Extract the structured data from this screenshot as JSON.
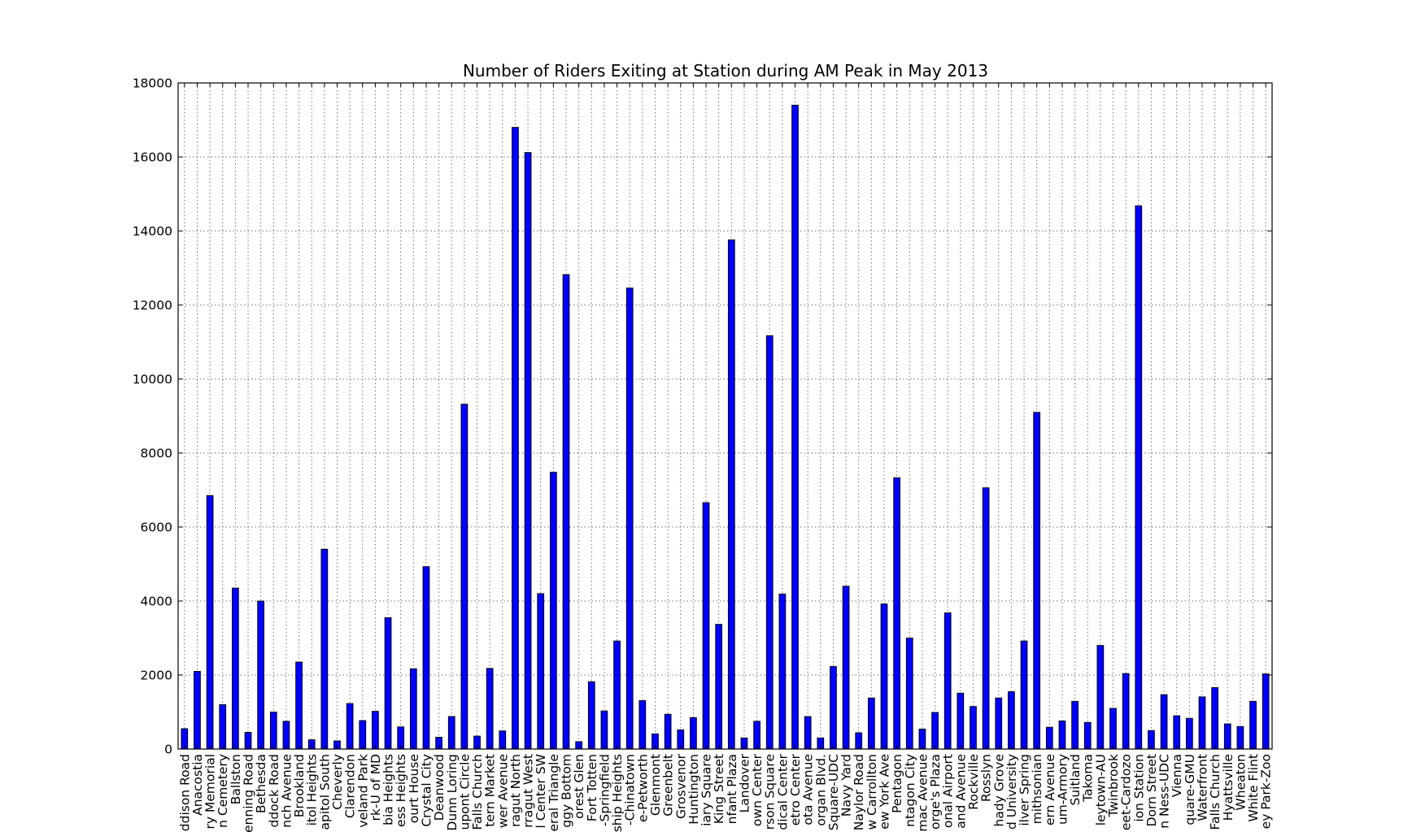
{
  "chart_data": {
    "type": "bar",
    "title": "Number of Riders Exiting at Station during AM Peak in May 2013",
    "xlabel": "",
    "ylabel": "",
    "ylim": [
      0,
      18000
    ],
    "yticks": [
      "0",
      "2000",
      "4000",
      "6000",
      "8000",
      "10000",
      "12000",
      "14000",
      "16000",
      "18000"
    ],
    "grid": true,
    "legend": "none",
    "bar_color": "#0000ff",
    "categories": [
      "ddison Road",
      "Anacostia",
      "ry Memorial",
      "n Cemetery",
      "Ballston",
      "enning Road",
      "Bethesda",
      "ddock Road",
      "nch Avenue",
      "Brookland",
      "itol Heights",
      "apitol South",
      "Cheverly",
      "Clarendon",
      "veland Park",
      "rk-U of MD",
      "bia Heights",
      "ess Heights",
      "ourt House",
      "Crystal City",
      "Deanwood",
      "Dunn Loring",
      "upont Circle",
      "Falls Church",
      "tern Market",
      "wer Avenue",
      "ragut North",
      "rragut West",
      "l Center SW",
      "eral Triangle",
      "ggy Bottom",
      "orest Glen",
      "Fort Totten",
      "-Springfield",
      "ship Heights",
      "-Chinatown",
      "e-Petworth",
      "Glenmont",
      "Greenbelt",
      "Grosvenor",
      "Huntington",
      "iary Square",
      "King Street",
      "nfant Plaza",
      "Landover",
      "own Center",
      "rson Square",
      "dical Center",
      "etro Center",
      "ota Avenue",
      "organ Blvd.",
      "Square-UDC",
      "Navy Yard",
      "Naylor Road",
      "w Carrollton",
      "ew York Ave",
      "Pentagon",
      "ntagon City",
      "mac Avenue",
      "orge's Plaza",
      "onal Airport",
      "and Avenue",
      "Rockville",
      "Rosslyn",
      "hady Grove",
      "d University",
      "ilver Spring",
      "mithsonian",
      "ern Avenue",
      "um-Armory",
      "Suitland",
      "Takoma",
      "leytown-AU",
      "Twinbrook",
      "eet-Cardozo",
      "ion Station",
      "Dorn Street",
      "n Ness-UDC",
      "Vienna",
      "quare-GMU",
      "Waterfront",
      "Falls Church",
      "Hyattsville",
      "Wheaton",
      "White Flint",
      "ey Park-Zoo"
    ],
    "values": [
      550,
      2100,
      6850,
      1200,
      4350,
      450,
      4000,
      1000,
      750,
      2350,
      250,
      5400,
      220,
      1230,
      770,
      1020,
      3550,
      600,
      2170,
      4930,
      320,
      880,
      9320,
      350,
      2180,
      490,
      16800,
      16120,
      4200,
      7480,
      12820,
      200,
      1820,
      1030,
      2920,
      12460,
      1310,
      410,
      940,
      520,
      850,
      6660,
      3370,
      13760,
      300,
      750,
      11170,
      4190,
      17400,
      880,
      300,
      2230,
      4400,
      440,
      1380,
      3920,
      7330,
      3000,
      540,
      990,
      3680,
      1510,
      1150,
      7060,
      1380,
      1550,
      2920,
      9100,
      590,
      760,
      1290,
      720,
      2800,
      1100,
      2040,
      14680,
      500,
      1470,
      900,
      830,
      1410,
      1660,
      680,
      610,
      1290,
      2030
    ]
  }
}
